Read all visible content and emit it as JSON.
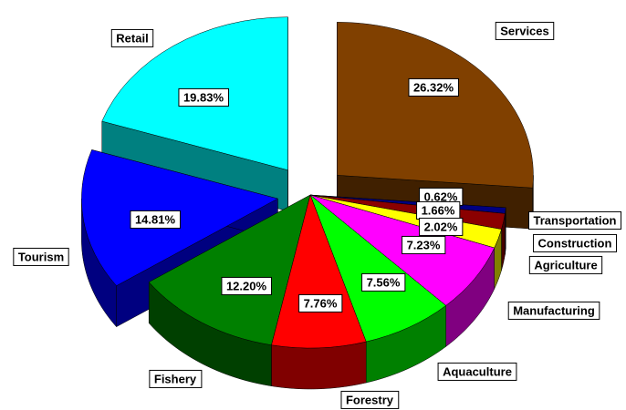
{
  "chart_data": {
    "type": "pie3d",
    "categories": [
      "Services",
      "Transportation",
      "Construction",
      "Agriculture",
      "Manufacturing",
      "Aquaculture",
      "Forestry",
      "Fishery",
      "Tourism",
      "Retail"
    ],
    "values": [
      26.32,
      0.62,
      1.66,
      2.02,
      7.23,
      7.56,
      7.76,
      12.2,
      14.81,
      19.83
    ],
    "value_labels": [
      "26.32%",
      "0.62%",
      "1.66%",
      "2.02%",
      "7.23%",
      "7.56%",
      "7.76%",
      "12.20%",
      "14.81%",
      "19.83%"
    ],
    "colors": [
      "#804000",
      "#000080",
      "#8b0000",
      "#ffff00",
      "#ff00ff",
      "#00ff00",
      "#ff0000",
      "#008000",
      "#0000ff",
      "#00ffff"
    ]
  }
}
